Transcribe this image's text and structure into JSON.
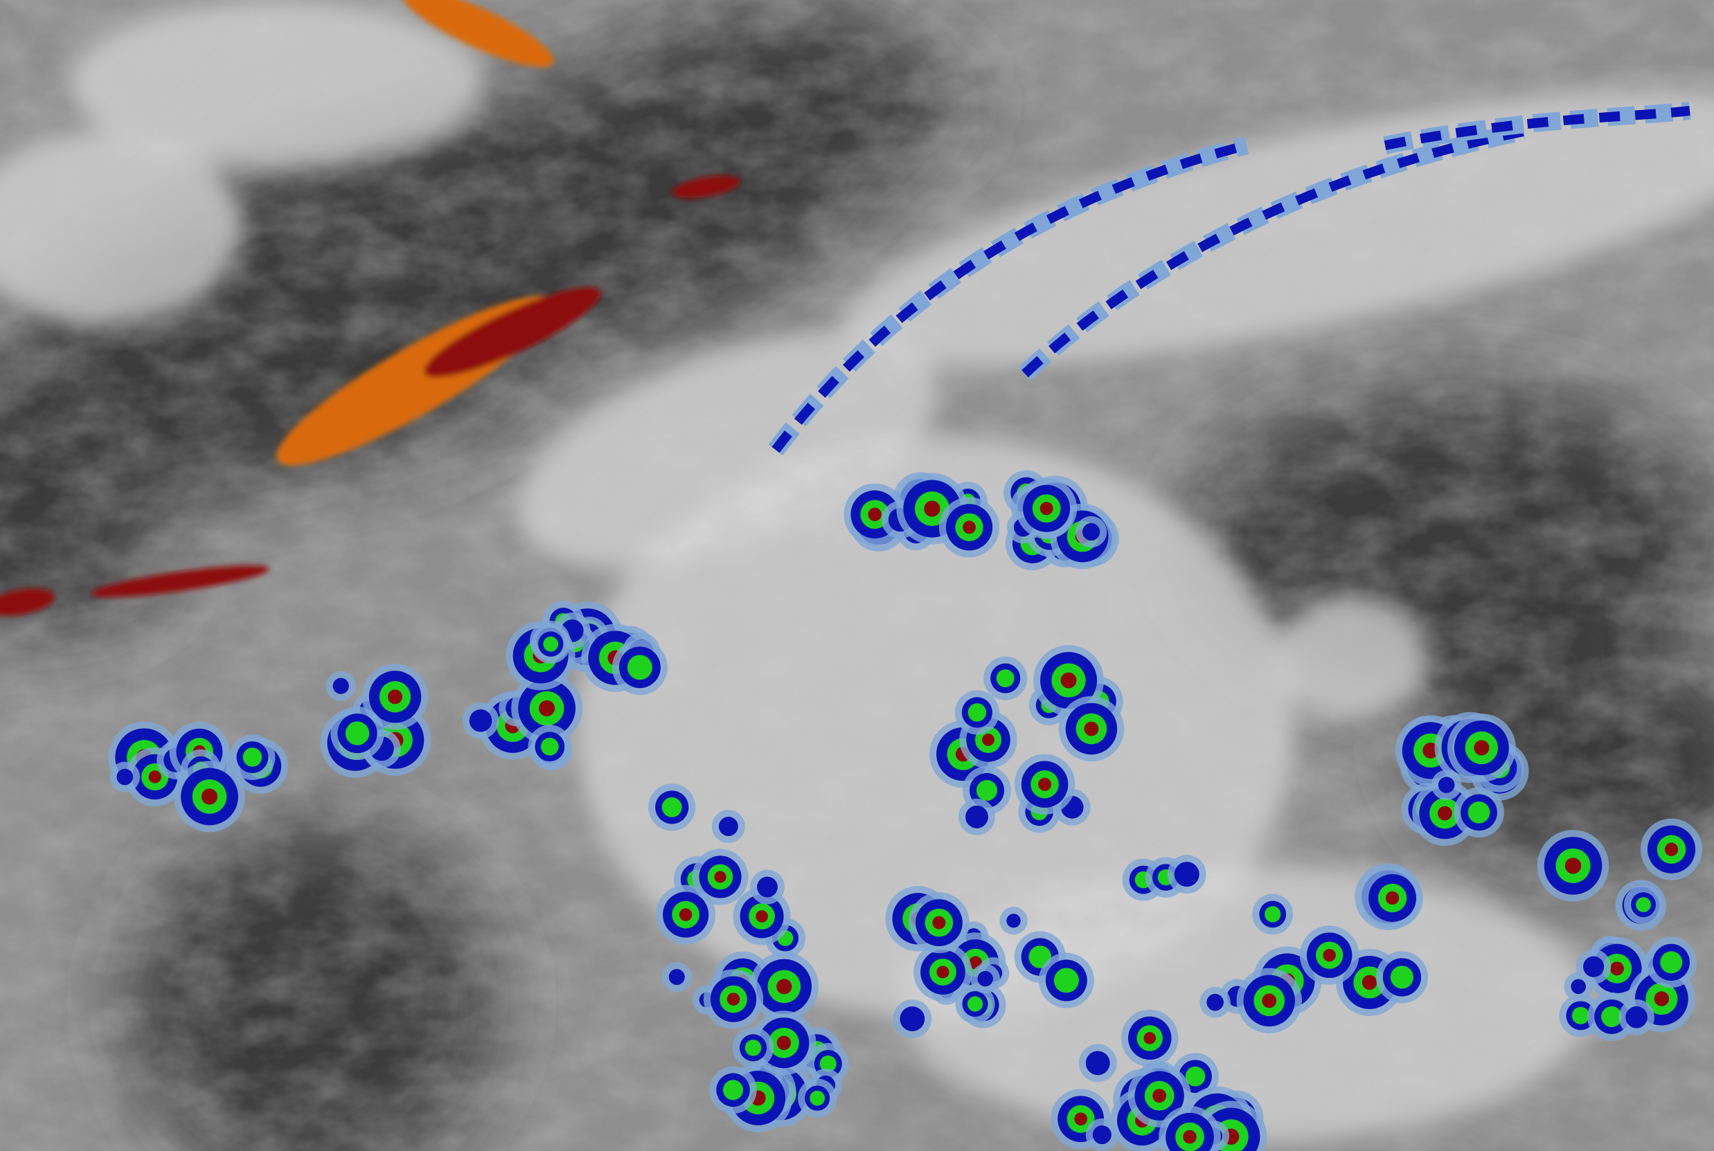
{
  "image": {
    "kind": "satellite-cloud-imagery",
    "palette": {
      "gray_dark": "#3a3a3a",
      "gray_mid": "#8c8c8c",
      "gray_light": "#d8d8d8",
      "cloud_white": "#f2f2f2",
      "light_blue": "#7fa6d6",
      "deep_blue": "#0a14b4",
      "green": "#1ed21e",
      "dark_red": "#8c0a0a",
      "red": "#c01010",
      "orange": "#d86a10"
    },
    "features": [
      "dry-slot-orange-streaks",
      "jet-stream-cirrus-bands",
      "convective-clusters",
      "cyclone-dry-core"
    ]
  }
}
